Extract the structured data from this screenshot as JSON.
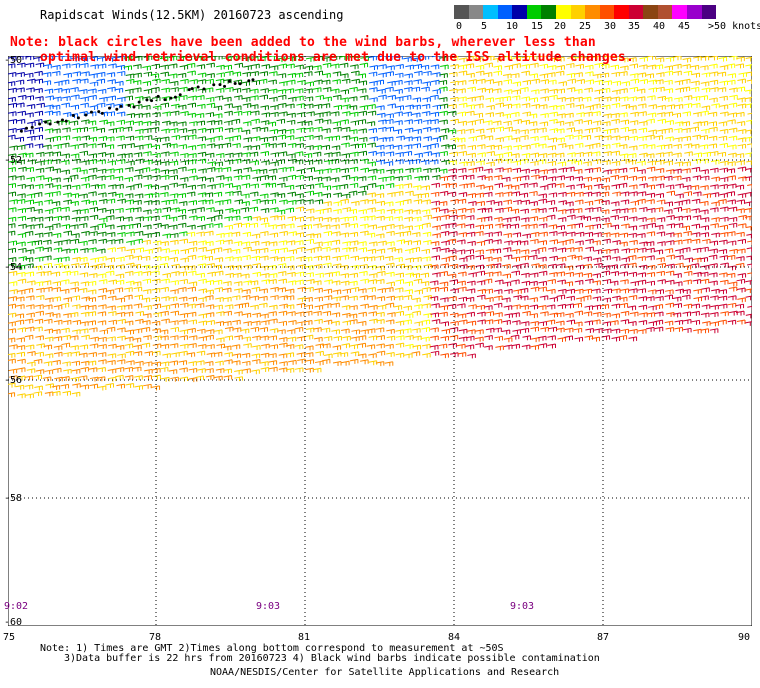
{
  "title": "Rapidscat Winds(12.5KM) 20160723 ascending",
  "note_line1": "Note: black circles have been added to the wind barbs, wherever less than",
  "note_line2": "optimal wind retrieval conditions are met due to the ISS altitude changes.",
  "legend": {
    "colors": [
      "#555555",
      "#888888",
      "#00bfff",
      "#0060ff",
      "#0000aa",
      "#00cc00",
      "#008000",
      "#ffff00",
      "#ffd000",
      "#ff8c00",
      "#ff5000",
      "#ff0000",
      "#cc0033",
      "#8b4513",
      "#b05030",
      "#ff00ff",
      "#9900cc",
      "#4b0082"
    ],
    "labels": [
      "0",
      "5",
      "10",
      "15",
      "20",
      "25",
      "30",
      "35",
      "40",
      "45",
      ">50 knots"
    ]
  },
  "lat_labels": [
    "-50",
    "-52",
    "-54",
    "-56",
    "-58",
    "-60"
  ],
  "lon_labels": [
    "75",
    "78",
    "81",
    "84",
    "87",
    "90"
  ],
  "times": [
    "9:02",
    "9:03",
    "9:03"
  ],
  "footer": {
    "line1": "Note: 1) Times are GMT 2)Times along bottom correspond to measurement at ~50S",
    "line2": "3)Data buffer is 22 hrs from 20160723 4) Black wind barbs indicate possible contamination",
    "line3": "NOAA/NESDIS/Center for Satellite Applications and Research"
  }
}
